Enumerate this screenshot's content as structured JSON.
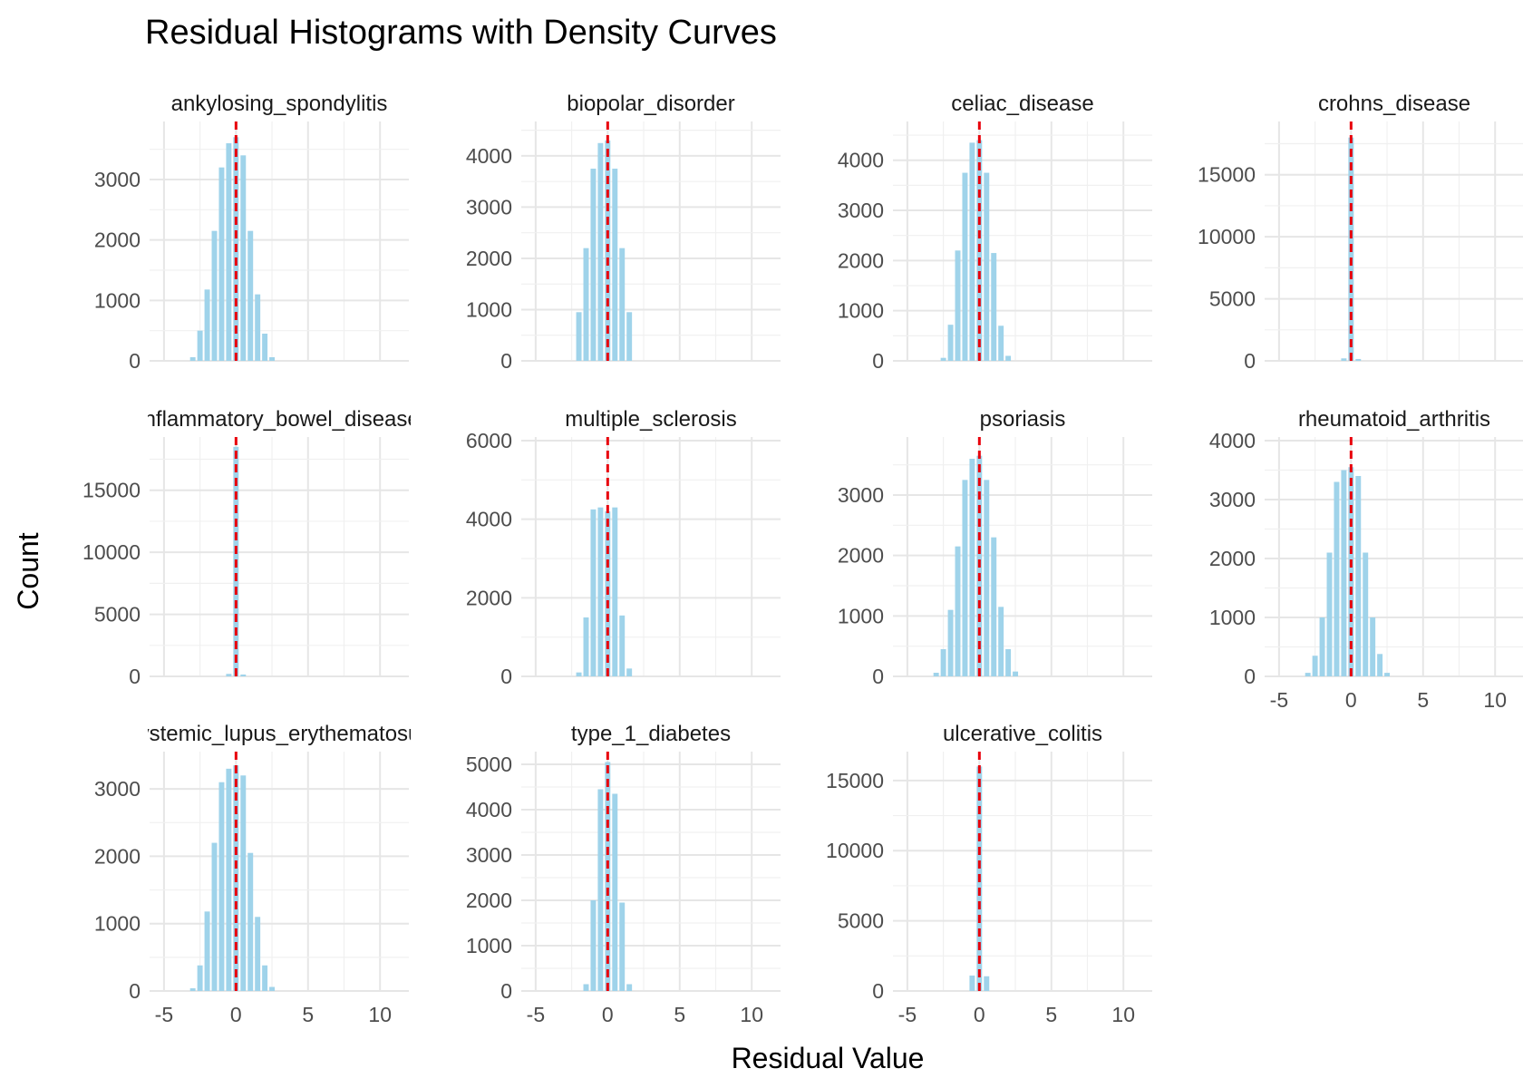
{
  "chart_data": {
    "type": "bar",
    "title": "Residual Histograms with Density Curves",
    "xlabel": "Residual Value",
    "ylabel": "Count",
    "xlim": [
      -6,
      12
    ],
    "x_ticks": [
      "-5",
      "0",
      "5",
      "10"
    ],
    "x_tick_values": [
      -5,
      0,
      5,
      10
    ],
    "bin_width": 0.5,
    "reference_line_x": 0,
    "colors": {
      "bar": "#9fd3ea",
      "ref_line": "#e8000b",
      "grid": "#e6e6e6",
      "text": "#4d4d4d"
    },
    "panels": [
      {
        "name": "ankylosing_spondylitis",
        "ylim": [
          0,
          3900
        ],
        "y_ticks": [
          0,
          1000,
          2000,
          3000
        ],
        "bins": [
          {
            "x": -3.0,
            "y": 60
          },
          {
            "x": -2.5,
            "y": 500
          },
          {
            "x": -2.0,
            "y": 1180
          },
          {
            "x": -1.5,
            "y": 2150
          },
          {
            "x": -1.0,
            "y": 3200
          },
          {
            "x": -0.5,
            "y": 3600
          },
          {
            "x": 0.0,
            "y": 3700
          },
          {
            "x": 0.5,
            "y": 3400
          },
          {
            "x": 1.0,
            "y": 2150
          },
          {
            "x": 1.5,
            "y": 1100
          },
          {
            "x": 2.0,
            "y": 450
          },
          {
            "x": 2.5,
            "y": 60
          }
        ]
      },
      {
        "name": "biopolar_disorder",
        "ylim": [
          0,
          4600
        ],
        "y_ticks": [
          0,
          1000,
          2000,
          3000,
          4000
        ],
        "bins": [
          {
            "x": -2.0,
            "y": 950
          },
          {
            "x": -1.5,
            "y": 2200
          },
          {
            "x": -1.0,
            "y": 3750
          },
          {
            "x": -0.5,
            "y": 4250
          },
          {
            "x": 0.0,
            "y": 4300
          },
          {
            "x": 0.5,
            "y": 3750
          },
          {
            "x": 1.0,
            "y": 2200
          },
          {
            "x": 1.5,
            "y": 950
          }
        ]
      },
      {
        "name": "celiac_disease",
        "ylim": [
          0,
          4700
        ],
        "y_ticks": [
          0,
          1000,
          2000,
          3000,
          4000
        ],
        "bins": [
          {
            "x": -2.5,
            "y": 60
          },
          {
            "x": -2.0,
            "y": 720
          },
          {
            "x": -1.5,
            "y": 2200
          },
          {
            "x": -1.0,
            "y": 3750
          },
          {
            "x": -0.5,
            "y": 4350
          },
          {
            "x": 0.0,
            "y": 4400
          },
          {
            "x": 0.5,
            "y": 3750
          },
          {
            "x": 1.0,
            "y": 2150
          },
          {
            "x": 1.5,
            "y": 700
          },
          {
            "x": 2.0,
            "y": 100
          }
        ]
      },
      {
        "name": "crohns_disease",
        "ylim": [
          0,
          19000
        ],
        "y_ticks": [
          0,
          5000,
          10000,
          15000
        ],
        "bins": [
          {
            "x": -0.5,
            "y": 200
          },
          {
            "x": 0.0,
            "y": 18000
          },
          {
            "x": 0.5,
            "y": 150
          }
        ]
      },
      {
        "name": "inflammatory_bowel_disease",
        "ylim": [
          0,
          19000
        ],
        "y_ticks": [
          0,
          5000,
          10000,
          15000
        ],
        "bins": [
          {
            "x": -0.5,
            "y": 200
          },
          {
            "x": 0.0,
            "y": 18500
          },
          {
            "x": 0.5,
            "y": 150
          }
        ]
      },
      {
        "name": "multiple_sclerosis",
        "ylim": [
          0,
          6000
        ],
        "y_ticks": [
          0,
          2000,
          4000,
          6000
        ],
        "bins": [
          {
            "x": -2.0,
            "y": 100
          },
          {
            "x": -1.5,
            "y": 1500
          },
          {
            "x": -1.0,
            "y": 4250
          },
          {
            "x": -0.5,
            "y": 4300
          },
          {
            "x": 0.0,
            "y": 4200
          },
          {
            "x": 0.5,
            "y": 4300
          },
          {
            "x": 1.0,
            "y": 1550
          },
          {
            "x": 1.5,
            "y": 200
          }
        ]
      },
      {
        "name": "psoriasis",
        "ylim": [
          0,
          3900
        ],
        "y_ticks": [
          0,
          1000,
          2000,
          3000
        ],
        "bins": [
          {
            "x": -3.0,
            "y": 60
          },
          {
            "x": -2.5,
            "y": 450
          },
          {
            "x": -2.0,
            "y": 1100
          },
          {
            "x": -1.5,
            "y": 2150
          },
          {
            "x": -1.0,
            "y": 3250
          },
          {
            "x": -0.5,
            "y": 3600
          },
          {
            "x": 0.0,
            "y": 3650
          },
          {
            "x": 0.5,
            "y": 3250
          },
          {
            "x": 1.0,
            "y": 2300
          },
          {
            "x": 1.5,
            "y": 1150
          },
          {
            "x": 2.0,
            "y": 450
          },
          {
            "x": 2.5,
            "y": 80
          }
        ]
      },
      {
        "name": "rheumatoid_arthritis",
        "ylim": [
          0,
          4000
        ],
        "y_ticks": [
          0,
          1000,
          2000,
          3000,
          4000
        ],
        "bins": [
          {
            "x": -3.0,
            "y": 60
          },
          {
            "x": -2.5,
            "y": 350
          },
          {
            "x": -2.0,
            "y": 1000
          },
          {
            "x": -1.5,
            "y": 2100
          },
          {
            "x": -1.0,
            "y": 3300
          },
          {
            "x": -0.5,
            "y": 3500
          },
          {
            "x": 0.0,
            "y": 3550
          },
          {
            "x": 0.5,
            "y": 3400
          },
          {
            "x": 1.0,
            "y": 2100
          },
          {
            "x": 1.5,
            "y": 1000
          },
          {
            "x": 2.0,
            "y": 380
          },
          {
            "x": 2.5,
            "y": 60
          }
        ]
      },
      {
        "name": "systemic_lupus_erythematosus",
        "ylim": [
          0,
          3500
        ],
        "y_ticks": [
          0,
          1000,
          2000,
          3000
        ],
        "bins": [
          {
            "x": -3.0,
            "y": 40
          },
          {
            "x": -2.5,
            "y": 380
          },
          {
            "x": -2.0,
            "y": 1180
          },
          {
            "x": -1.5,
            "y": 2200
          },
          {
            "x": -1.0,
            "y": 3100
          },
          {
            "x": -0.5,
            "y": 3300
          },
          {
            "x": 0.0,
            "y": 3350
          },
          {
            "x": 0.5,
            "y": 3200
          },
          {
            "x": 1.0,
            "y": 2050
          },
          {
            "x": 1.5,
            "y": 1100
          },
          {
            "x": 2.0,
            "y": 380
          },
          {
            "x": 2.5,
            "y": 60
          }
        ]
      },
      {
        "name": "type_1_diabetes",
        "ylim": [
          0,
          5200
        ],
        "y_ticks": [
          0,
          1000,
          2000,
          3000,
          4000,
          5000
        ],
        "bins": [
          {
            "x": -1.5,
            "y": 150
          },
          {
            "x": -1.0,
            "y": 2000
          },
          {
            "x": -0.5,
            "y": 4450
          },
          {
            "x": 0.0,
            "y": 5050
          },
          {
            "x": 0.5,
            "y": 4350
          },
          {
            "x": 1.0,
            "y": 1950
          },
          {
            "x": 1.5,
            "y": 150
          }
        ]
      },
      {
        "name": "ulcerative_colitis",
        "ylim": [
          0,
          16800
        ],
        "y_ticks": [
          0,
          5000,
          10000,
          15000
        ],
        "bins": [
          {
            "x": -0.5,
            "y": 1100
          },
          {
            "x": 0.0,
            "y": 16000
          },
          {
            "x": 0.5,
            "y": 1050
          }
        ]
      }
    ]
  }
}
